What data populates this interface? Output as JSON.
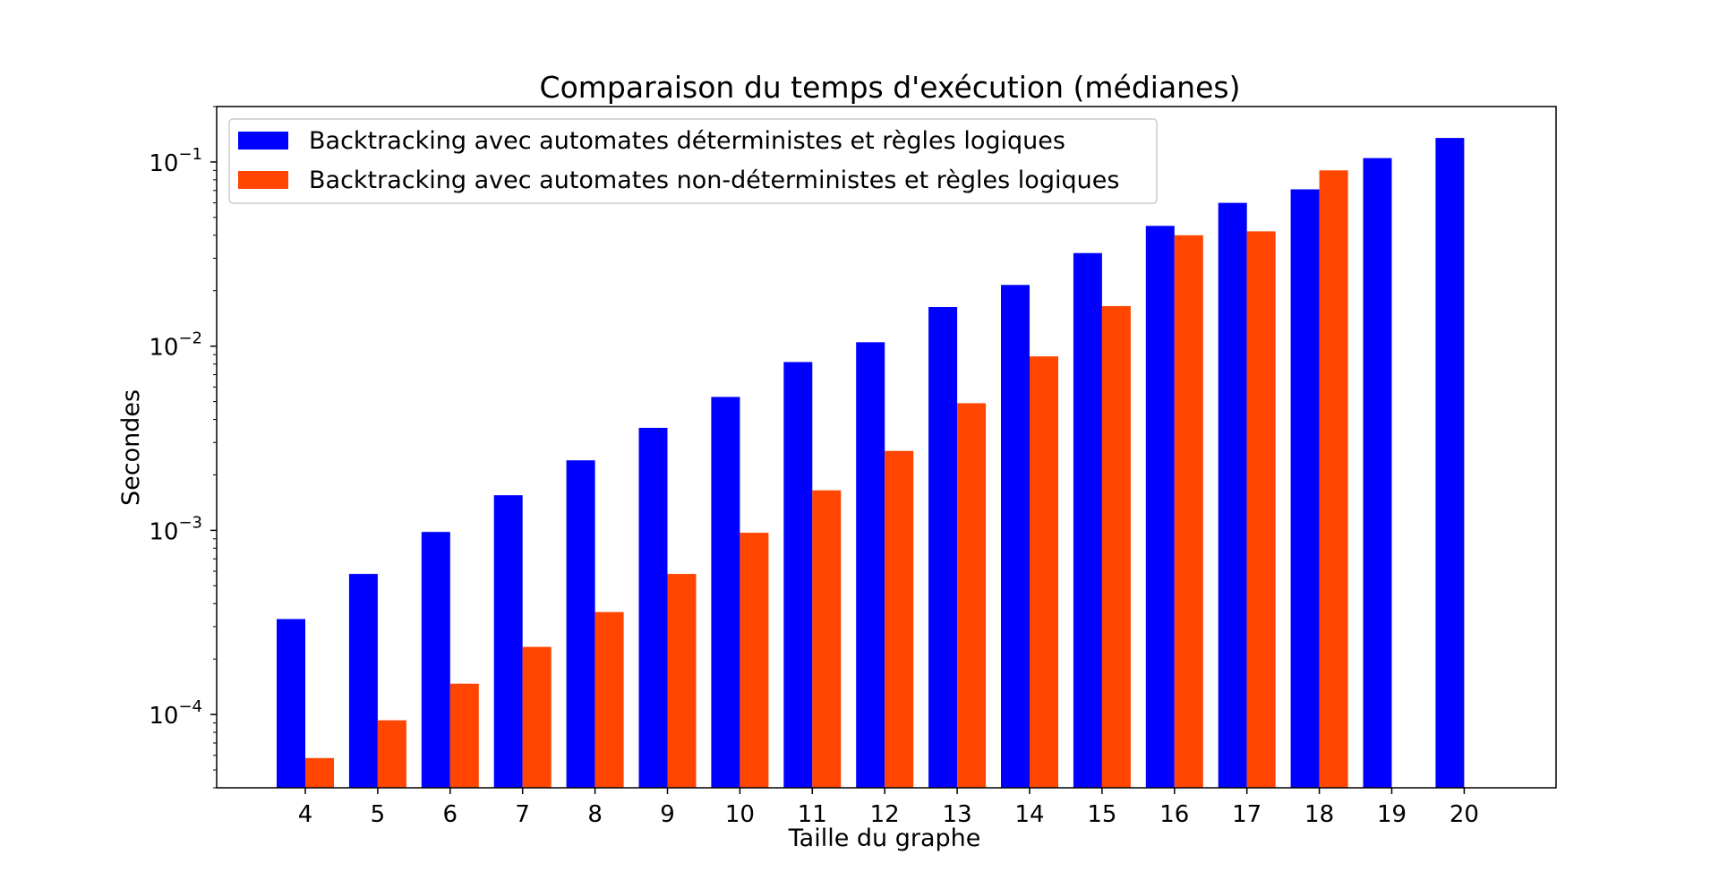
{
  "chart_data": {
    "type": "bar",
    "title": "Comparaison du temps d'exécution (médianes)",
    "xlabel": "Taille du graphe",
    "ylabel": "Secondes",
    "yscale": "log",
    "ylim": [
      4e-05,
      0.2
    ],
    "yticks": [
      {
        "value": 0.0001,
        "base": "10",
        "exp": "−4"
      },
      {
        "value": 0.001,
        "base": "10",
        "exp": "−3"
      },
      {
        "value": 0.01,
        "base": "10",
        "exp": "−2"
      },
      {
        "value": 0.1,
        "base": "10",
        "exp": "−1"
      }
    ],
    "categories": [
      "4",
      "5",
      "6",
      "7",
      "8",
      "9",
      "10",
      "11",
      "12",
      "13",
      "14",
      "15",
      "16",
      "17",
      "18",
      "19",
      "20"
    ],
    "grid": false,
    "legend_position": "top-left",
    "series": [
      {
        "name": "Backtracking avec automates déterministes et règles logiques",
        "color": "#0000ff",
        "values": [
          0.00033,
          0.00058,
          0.00098,
          0.00155,
          0.0024,
          0.0036,
          0.0053,
          0.0082,
          0.0105,
          0.0163,
          0.0215,
          0.032,
          0.045,
          0.06,
          0.071,
          0.105,
          0.135
        ]
      },
      {
        "name": "Backtracking avec automates non-déterministes et règles logiques",
        "color": "#ff4500",
        "values": [
          5.8e-05,
          9.3e-05,
          0.000147,
          0.000233,
          0.00036,
          0.00058,
          0.00097,
          0.00165,
          0.0027,
          0.0049,
          0.0088,
          0.0165,
          0.04,
          0.042,
          0.09,
          null,
          null
        ]
      }
    ]
  }
}
